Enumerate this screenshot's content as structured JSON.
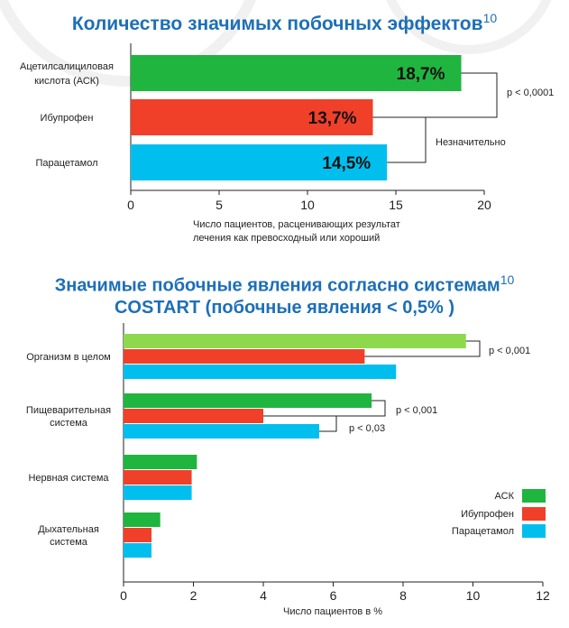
{
  "chart_data": [
    {
      "type": "bar",
      "orientation": "horizontal",
      "title": "Количество значимых побочных эффектов",
      "title_sup": "10",
      "categories": [
        "Ацетилсалициловая кислота (АСК)",
        "Ибупрофен",
        "Парацетамол"
      ],
      "category_lines": [
        [
          "Ацетилсалициловая",
          "кислота (АСК)"
        ],
        [
          "Ибупрофен"
        ],
        [
          "Парацетамол"
        ]
      ],
      "values": [
        18.7,
        13.7,
        14.5
      ],
      "value_labels": [
        "18,7%",
        "13,7%",
        "14,5%"
      ],
      "colors": [
        "#1fb53f",
        "#f0402a",
        "#00bfee"
      ],
      "xlim": [
        0,
        20
      ],
      "xticks": [
        "0",
        "5",
        "10",
        "15",
        "20"
      ],
      "xlabel_lines": [
        "Число пациентов, расценивающих результат",
        "лечения как превосходный или хороший"
      ],
      "annotations": [
        {
          "from": 0,
          "to": 1,
          "text": "p < 0,0001"
        },
        {
          "from": 1,
          "to": 2,
          "text": "Незначительно"
        }
      ]
    },
    {
      "type": "bar",
      "orientation": "horizontal",
      "title_lines": [
        "Значимые побочные явления согласно системам",
        "COSTART (побочные явления < 0,5% )"
      ],
      "title_sup": "10",
      "categories": [
        "Организм в целом",
        "Пищеварительная система",
        "Нервная система",
        "Дыхательная система"
      ],
      "category_lines": [
        [
          "Организм в целом"
        ],
        [
          "Пищеварительная",
          "система"
        ],
        [
          "Нервная система"
        ],
        [
          "Дыхательная",
          "система"
        ]
      ],
      "series": [
        {
          "name": "АСК",
          "values": [
            9.8,
            7.1,
            2.1,
            1.05
          ],
          "color": "#1fb53f"
        },
        {
          "name": "Ибупрофен",
          "values": [
            6.9,
            4.0,
            1.95,
            0.8
          ],
          "color": "#f0402a"
        },
        {
          "name": "Парацетамол",
          "values": [
            7.8,
            5.6,
            1.95,
            0.8
          ],
          "color": "#00bfee"
        }
      ],
      "first_bar_color": "#8ed84e",
      "xlim": [
        0,
        12
      ],
      "xticks": [
        "0",
        "2",
        "4",
        "6",
        "8",
        "10",
        "12"
      ],
      "xlabel": "Число пациентов в %",
      "legend_position": "bottom-right",
      "annotations": [
        {
          "category": 0,
          "from": 0,
          "to": 1,
          "text": "p < 0,001"
        },
        {
          "category": 1,
          "from": 0,
          "to": 1,
          "text": "p < 0,001"
        },
        {
          "category": 1,
          "from": 1,
          "to": 2,
          "text": "p < 0,03"
        }
      ]
    }
  ]
}
